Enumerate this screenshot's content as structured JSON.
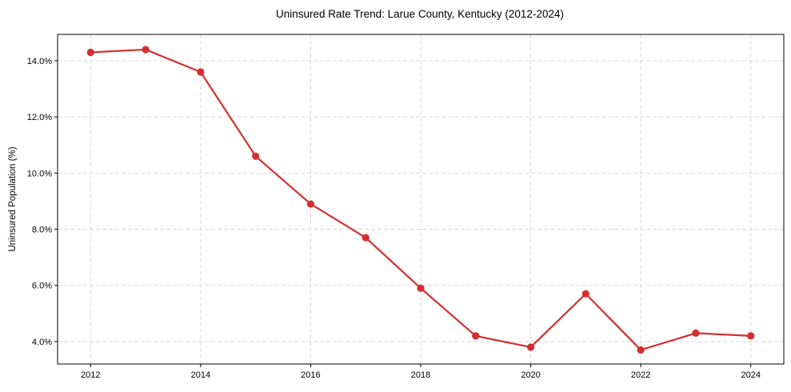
{
  "chart_data": {
    "type": "line",
    "title": "Uninsured Rate Trend: Larue County, Kentucky (2012-2024)",
    "xlabel": "",
    "ylabel": "Uninsured Population (%)",
    "x": [
      2012,
      2013,
      2014,
      2015,
      2016,
      2017,
      2018,
      2019,
      2020,
      2021,
      2022,
      2023,
      2024
    ],
    "series": [
      {
        "name": "Uninsured Rate",
        "values": [
          14.3,
          14.4,
          13.6,
          10.6,
          8.9,
          7.7,
          5.9,
          4.2,
          3.8,
          5.7,
          3.7,
          4.3,
          4.2
        ],
        "color": "#d32f2f",
        "marker": "circle"
      }
    ],
    "x_ticks": [
      2012,
      2014,
      2016,
      2018,
      2020,
      2022,
      2024
    ],
    "x_tick_labels": [
      "2012",
      "2014",
      "2016",
      "2018",
      "2020",
      "2022",
      "2024"
    ],
    "y_ticks": [
      4,
      6,
      8,
      10,
      12,
      14
    ],
    "y_tick_labels": [
      "4.0%",
      "6.0%",
      "8.0%",
      "10.0%",
      "12.0%",
      "14.0%"
    ],
    "xlim": [
      2011.4,
      2024.6
    ],
    "ylim": [
      3.2,
      14.94
    ],
    "grid": true,
    "legend": null
  }
}
